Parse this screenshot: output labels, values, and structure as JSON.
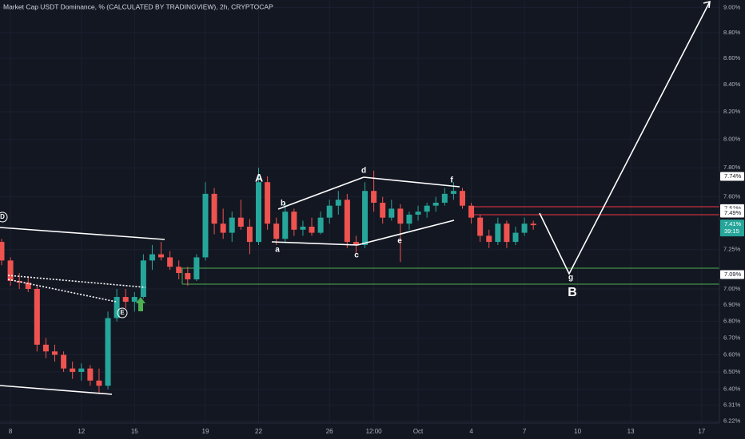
{
  "chart_data": {
    "type": "candlestick",
    "title": "Market Cap USDT Dominance, % (CALCULATED BY TRADINGVIEW), 2h, CRYPTOCAP",
    "log_scale": true,
    "up_color": "#26a69a",
    "down_color": "#ef5350",
    "xlim": [
      7.41,
      48
    ],
    "ylim": [
      6.21,
      9.06
    ],
    "xticks": [
      8,
      12,
      15,
      19,
      22,
      26,
      {
        "value": 28.5,
        "label": "12:00"
      },
      {
        "value": 31,
        "label": "Oct"
      },
      4,
      7,
      10,
      13,
      17
    ],
    "xtick_positions": [
      8,
      12,
      15,
      19,
      22,
      26,
      28.5,
      31,
      34,
      37,
      40,
      43,
      47
    ],
    "yticks": [
      {
        "value": 9,
        "label": "9.00%"
      },
      {
        "value": 8.8,
        "label": "8.80%"
      },
      {
        "value": 8.6,
        "label": "8.60%"
      },
      {
        "value": 8.4,
        "label": "8.40%"
      },
      {
        "value": 8.2,
        "label": "8.20%"
      },
      {
        "value": 8,
        "label": "8.00%"
      },
      {
        "value": 7.8,
        "label": "7.80%"
      },
      {
        "value": 7.6,
        "label": "7.60%"
      },
      {
        "value": 7.25,
        "label": "7.25%"
      },
      {
        "value": 7,
        "label": "7.00%"
      },
      {
        "value": 6.9,
        "label": "6.90%"
      },
      {
        "value": 6.8,
        "label": "6.80%"
      },
      {
        "value": 6.7,
        "label": "6.70%"
      },
      {
        "value": 6.6,
        "label": "6.60%"
      },
      {
        "value": 6.5,
        "label": "6.50%"
      },
      {
        "value": 6.4,
        "label": "6.40%"
      },
      {
        "value": 6.31,
        "label": "6.31%"
      },
      {
        "value": 6.22,
        "label": "6.22%"
      }
    ],
    "price_labels": [
      {
        "value": 7.74,
        "label": "7.74%"
      },
      {
        "value": 7.52,
        "label": "7.52%"
      },
      {
        "value": 7.49,
        "label": "7.49%"
      },
      {
        "value": 7.09,
        "label": "7.09%"
      }
    ],
    "last_price": {
      "value": 7.41,
      "label": "7.41%",
      "countdown": "39:15"
    },
    "annotations": [
      "A",
      "a",
      "b",
      "c",
      "d",
      "e",
      "f",
      "g",
      "B",
      "D",
      "E"
    ],
    "x": [
      7.5,
      8,
      8.5,
      9,
      9.5,
      10,
      10.5,
      11,
      11.5,
      12,
      12.5,
      13,
      13.5,
      14,
      14.5,
      15,
      15.5,
      16,
      16.5,
      17,
      17.5,
      18,
      18.5,
      19,
      19.5,
      20,
      20.5,
      21,
      21.5,
      22,
      22.5,
      23,
      23.5,
      24,
      24.5,
      25,
      25.5,
      26,
      26.5,
      27,
      27.5,
      28,
      28.5,
      29,
      29.5,
      30,
      30.5,
      31,
      31.5,
      32,
      32.5,
      33,
      33.5,
      34,
      34.5,
      35,
      35.5,
      36,
      36.5,
      37,
      37.5
    ],
    "candles": [
      [
        7.3,
        7.32,
        7.15,
        7.18
      ],
      [
        7.18,
        7.2,
        7.02,
        7.05
      ],
      [
        7.05,
        7.1,
        7.0,
        7.04
      ],
      [
        7.04,
        7.08,
        6.98,
        7.0
      ],
      [
        7.0,
        7.02,
        6.62,
        6.66
      ],
      [
        6.66,
        6.7,
        6.58,
        6.62
      ],
      [
        6.62,
        6.66,
        6.56,
        6.6
      ],
      [
        6.6,
        6.62,
        6.5,
        6.52
      ],
      [
        6.52,
        6.56,
        6.46,
        6.5
      ],
      [
        6.5,
        6.55,
        6.45,
        6.52
      ],
      [
        6.52,
        6.54,
        6.42,
        6.45
      ],
      [
        6.45,
        6.52,
        6.38,
        6.42
      ],
      [
        6.42,
        6.86,
        6.4,
        6.82
      ],
      [
        6.82,
        7.0,
        6.8,
        6.95
      ],
      [
        6.95,
        7.0,
        6.88,
        6.92
      ],
      [
        6.92,
        6.98,
        6.86,
        6.95
      ],
      [
        6.95,
        7.22,
        6.94,
        7.18
      ],
      [
        7.18,
        7.28,
        7.12,
        7.22
      ],
      [
        7.22,
        7.3,
        7.18,
        7.2
      ],
      [
        7.2,
        7.24,
        7.12,
        7.14
      ],
      [
        7.14,
        7.18,
        7.06,
        7.1
      ],
      [
        7.1,
        7.14,
        7.02,
        7.06
      ],
      [
        7.06,
        7.22,
        7.05,
        7.2
      ],
      [
        7.2,
        7.7,
        7.18,
        7.62
      ],
      [
        7.62,
        7.66,
        7.35,
        7.42
      ],
      [
        7.42,
        7.52,
        7.32,
        7.36
      ],
      [
        7.36,
        7.5,
        7.3,
        7.46
      ],
      [
        7.46,
        7.58,
        7.38,
        7.4
      ],
      [
        7.4,
        7.45,
        7.22,
        7.3
      ],
      [
        7.3,
        7.8,
        7.28,
        7.7
      ],
      [
        7.7,
        7.74,
        7.38,
        7.42
      ],
      [
        7.42,
        7.46,
        7.28,
        7.32
      ],
      [
        7.32,
        7.56,
        7.3,
        7.5
      ],
      [
        7.5,
        7.52,
        7.34,
        7.38
      ],
      [
        7.38,
        7.44,
        7.34,
        7.4
      ],
      [
        7.4,
        7.46,
        7.34,
        7.36
      ],
      [
        7.36,
        7.5,
        7.35,
        7.46
      ],
      [
        7.46,
        7.58,
        7.42,
        7.54
      ],
      [
        7.54,
        7.64,
        7.48,
        7.58
      ],
      [
        7.58,
        7.62,
        7.26,
        7.3
      ],
      [
        7.3,
        7.34,
        7.22,
        7.28
      ],
      [
        7.28,
        7.7,
        7.26,
        7.64
      ],
      [
        7.64,
        7.78,
        7.5,
        7.56
      ],
      [
        7.56,
        7.6,
        7.42,
        7.46
      ],
      [
        7.46,
        7.58,
        7.44,
        7.52
      ],
      [
        7.52,
        7.55,
        7.17,
        7.42
      ],
      [
        7.42,
        7.5,
        7.38,
        7.48
      ],
      [
        7.48,
        7.54,
        7.44,
        7.5
      ],
      [
        7.5,
        7.56,
        7.46,
        7.54
      ],
      [
        7.54,
        7.6,
        7.5,
        7.56
      ],
      [
        7.56,
        7.66,
        7.54,
        7.62
      ],
      [
        7.62,
        7.7,
        7.58,
        7.64
      ],
      [
        7.64,
        7.66,
        7.52,
        7.54
      ],
      [
        7.54,
        7.56,
        7.42,
        7.46
      ],
      [
        7.46,
        7.48,
        7.3,
        7.34
      ],
      [
        7.34,
        7.38,
        7.26,
        7.3
      ],
      [
        7.3,
        7.46,
        7.28,
        7.42
      ],
      [
        7.42,
        7.44,
        7.26,
        7.3
      ],
      [
        7.3,
        7.4,
        7.28,
        7.36
      ],
      [
        7.36,
        7.46,
        7.34,
        7.42
      ],
      [
        7.42,
        7.44,
        7.38,
        7.41
      ]
    ]
  }
}
